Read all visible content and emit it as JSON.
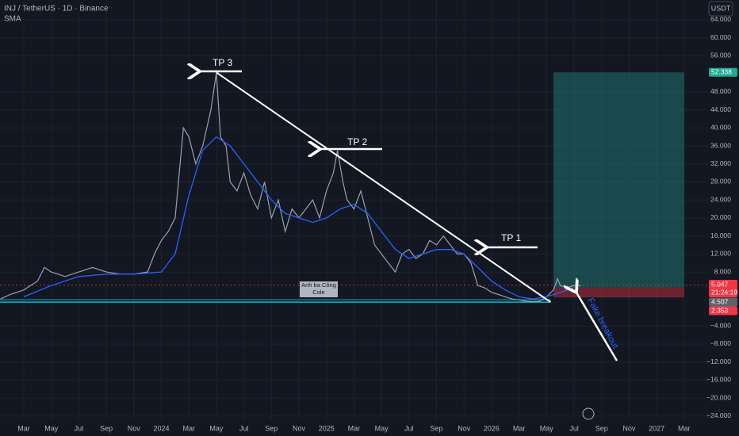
{
  "chart_data": {
    "type": "line",
    "title": "INJ / TetherUS · 1D · Binance",
    "indicator": "SMA",
    "currency": "USDT",
    "xlim": [
      -1.73,
      49.74
    ],
    "ylim": [
      -24.9,
      68.4
    ],
    "grid": true,
    "xticks": [
      {
        "value": 0,
        "label": "Mar"
      },
      {
        "value": 2,
        "label": "May"
      },
      {
        "value": 4,
        "label": "Jul"
      },
      {
        "value": 6,
        "label": "Sep"
      },
      {
        "value": 8,
        "label": "Nov"
      },
      {
        "value": 10,
        "label": "2024"
      },
      {
        "value": 12,
        "label": "Mar"
      },
      {
        "value": 14,
        "label": "May"
      },
      {
        "value": 16,
        "label": "Jul"
      },
      {
        "value": 18,
        "label": "Sep"
      },
      {
        "value": 20,
        "label": "Nov"
      },
      {
        "value": 22,
        "label": "2025"
      },
      {
        "value": 24,
        "label": "Mar"
      },
      {
        "value": 26,
        "label": "May"
      },
      {
        "value": 28,
        "label": "Jul"
      },
      {
        "value": 30,
        "label": "Sep"
      },
      {
        "value": 32,
        "label": "Nov"
      },
      {
        "value": 34,
        "label": "2026"
      },
      {
        "value": 36,
        "label": "Mar"
      },
      {
        "value": 38,
        "label": "May"
      },
      {
        "value": 40,
        "label": "Jul"
      },
      {
        "value": 42,
        "label": "Sep"
      },
      {
        "value": 44,
        "label": "Nov"
      },
      {
        "value": 46,
        "label": "2027"
      },
      {
        "value": 48,
        "label": "Mar"
      }
    ],
    "yticks": [
      {
        "value": 64,
        "label": "64.000"
      },
      {
        "value": 60,
        "label": "60.000"
      },
      {
        "value": 56,
        "label": "56.000"
      },
      {
        "value": 48,
        "label": "48.000"
      },
      {
        "value": 44,
        "label": "44.000"
      },
      {
        "value": 40,
        "label": "40.000"
      },
      {
        "value": 36,
        "label": "36.000"
      },
      {
        "value": 32,
        "label": "32.000"
      },
      {
        "value": 28,
        "label": "28.000"
      },
      {
        "value": 24,
        "label": "24.000"
      },
      {
        "value": 20,
        "label": "20.000"
      },
      {
        "value": 16,
        "label": "16.000"
      },
      {
        "value": 12,
        "label": "12.000"
      },
      {
        "value": 8,
        "label": "8.000"
      },
      {
        "value": -4,
        "label": "−4.000"
      },
      {
        "value": -8,
        "label": "−8.000"
      },
      {
        "value": -12,
        "label": "−12.000"
      },
      {
        "value": -16,
        "label": "−16.000"
      },
      {
        "value": -20,
        "label": "−20.000"
      },
      {
        "value": -24,
        "label": "−24.000"
      }
    ],
    "series": [
      {
        "name": "INJ / TetherUS",
        "color": "#9aa0ad",
        "x": [
          -1.7,
          -1,
          0,
          1,
          1.5,
          2,
          3,
          4,
          5,
          6,
          7,
          8,
          9,
          9.5,
          10,
          10.5,
          11,
          11.3,
          11.6,
          12,
          12.5,
          13,
          13.6,
          14,
          14.3,
          14.7,
          15,
          15.5,
          16,
          16.5,
          17,
          17.5,
          18,
          18.5,
          19,
          19.5,
          20,
          20.5,
          21,
          21.5,
          22,
          22.5,
          22.8,
          23.2,
          23.5,
          24,
          24.5,
          25,
          25.5,
          26,
          26.5,
          27,
          27.5,
          28,
          28.5,
          29,
          29.5,
          30,
          30.5,
          31,
          31.5,
          32,
          32.5,
          33,
          33.5,
          34,
          34.5,
          35,
          35.5,
          36,
          36.5,
          37,
          37.5,
          38,
          38.5,
          38.8,
          39,
          39.5,
          40,
          40.5
        ],
        "values": [
          2,
          3,
          4,
          6,
          9,
          8,
          7,
          8,
          9,
          8,
          7.5,
          7.5,
          8,
          12,
          15,
          17,
          20,
          30,
          40,
          38,
          32,
          36,
          44,
          52.3,
          38,
          36,
          28,
          26,
          30,
          25,
          22,
          28,
          20,
          24,
          17,
          22,
          20,
          22,
          24,
          20,
          26,
          30,
          35,
          28,
          24,
          22,
          26,
          20,
          14,
          12,
          10,
          8,
          12,
          13,
          11,
          12,
          15,
          14,
          16,
          14,
          12,
          12,
          10,
          5,
          4.5,
          3.5,
          3,
          2.5,
          2,
          1.8,
          1.5,
          1.4,
          1.5,
          2.5,
          4,
          6.5,
          5,
          4.5,
          5,
          5
        ]
      },
      {
        "name": "SMA",
        "color": "#2962ff",
        "x": [
          0,
          2,
          4,
          6,
          8,
          10,
          11,
          12,
          13,
          14,
          15,
          16,
          17,
          18,
          19,
          20,
          21,
          22,
          23,
          24,
          25,
          26,
          27,
          28,
          29,
          30,
          31,
          32,
          33,
          34,
          35,
          36,
          37,
          38,
          39,
          40
        ],
        "values": [
          2.5,
          5,
          7,
          7.5,
          7.5,
          8,
          12,
          25,
          35,
          38,
          36,
          32,
          28,
          24,
          21,
          20,
          19,
          20,
          22,
          23,
          21,
          17,
          13,
          11,
          12,
          13,
          13,
          12,
          9,
          6,
          4,
          2.5,
          2,
          2.5,
          3.5,
          4.5
        ]
      }
    ],
    "trendline": {
      "x": [
        14,
        38.3
      ],
      "y": [
        52.3,
        1.3
      ]
    },
    "support": 1.3,
    "position": {
      "x": [
        38.5,
        48
      ],
      "target": 52.338,
      "entry": 4.507,
      "stop": 2.353
    },
    "last_price": 5.047,
    "countdown": "21:24:19",
    "annotations": [
      "TP 3",
      "TP 2",
      "TP 1",
      "Fake breakout"
    ],
    "label_box": [
      "Anh ba Công",
      "Cole"
    ]
  }
}
